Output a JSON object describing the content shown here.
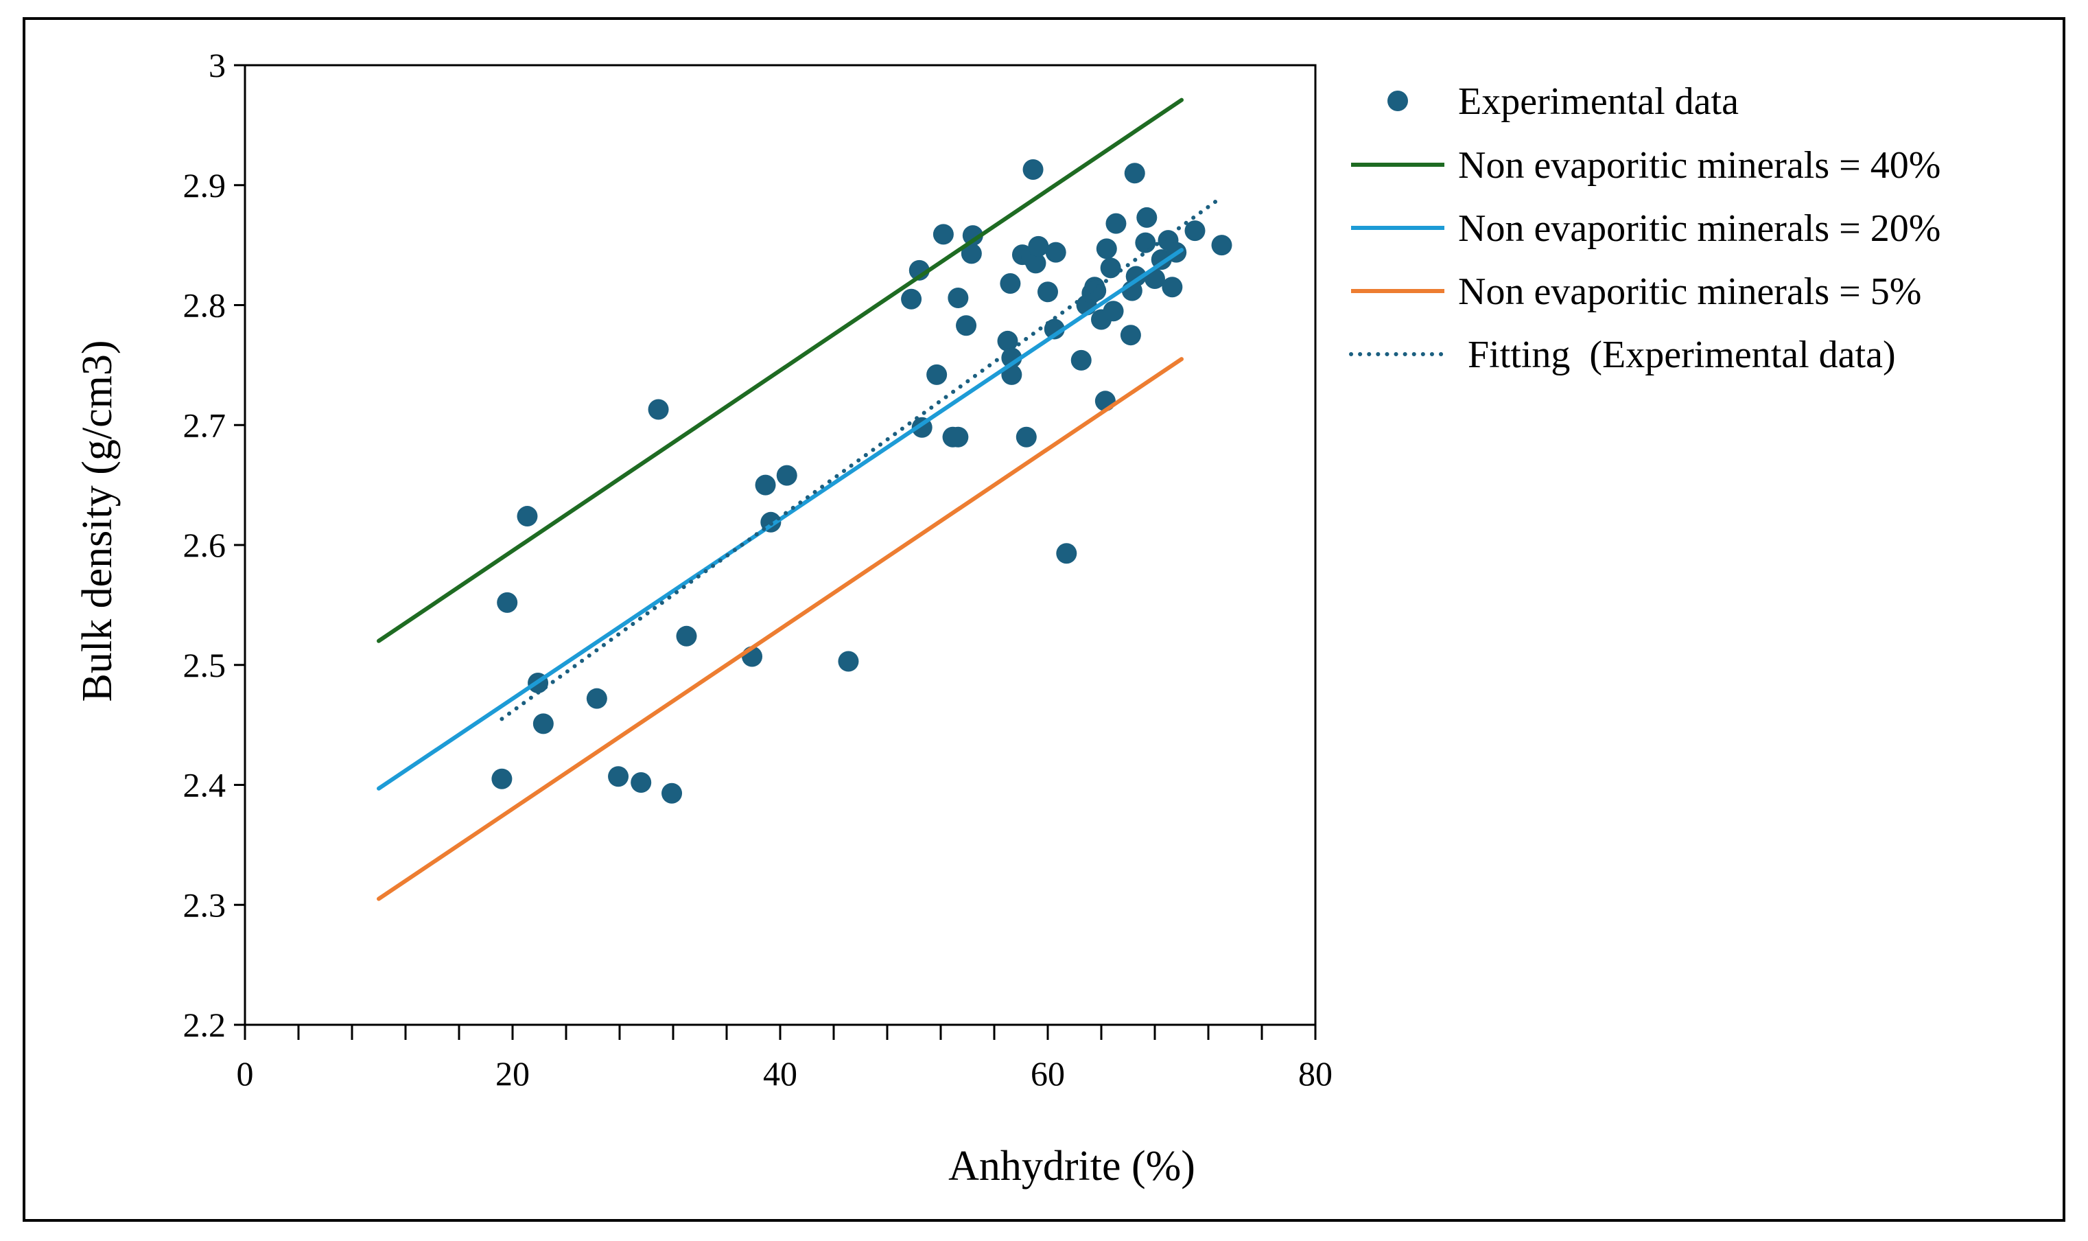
{
  "chart_data": {
    "type": "scatter",
    "title": "",
    "xlabel": "Anhydrite  (%)",
    "ylabel": "Bulk density  (g/cm3)",
    "xlim": [
      0,
      80
    ],
    "ylim": [
      2.2,
      3.0
    ],
    "x_major_ticks": [
      0,
      20,
      40,
      60,
      80
    ],
    "x_tick_labels": [
      "0",
      "20",
      "40",
      "60",
      "80"
    ],
    "x_minor_step": 4,
    "y_ticks": [
      2.2,
      2.3,
      2.4,
      2.5,
      2.6,
      2.7,
      2.8,
      2.9,
      3.0
    ],
    "y_tick_labels": [
      "2.2",
      "2.3",
      "2.4",
      "2.5",
      "2.6",
      "2.7",
      "2.8",
      "2.9",
      "3"
    ],
    "grid": false,
    "legend_position": "right",
    "series": [
      {
        "name": "Experimental data",
        "kind": "scatter",
        "color": "#1b5f80",
        "points": [
          [
            19.2,
            2.405
          ],
          [
            19.6,
            2.552
          ],
          [
            21.1,
            2.624
          ],
          [
            21.9,
            2.485
          ],
          [
            22.3,
            2.451
          ],
          [
            26.3,
            2.472
          ],
          [
            27.9,
            2.407
          ],
          [
            29.6,
            2.402
          ],
          [
            30.9,
            2.713
          ],
          [
            31.9,
            2.393
          ],
          [
            33.0,
            2.524
          ],
          [
            37.9,
            2.507
          ],
          [
            38.9,
            2.65
          ],
          [
            39.3,
            2.619
          ],
          [
            40.5,
            2.658
          ],
          [
            45.1,
            2.503
          ],
          [
            49.8,
            2.805
          ],
          [
            50.4,
            2.829
          ],
          [
            50.6,
            2.698
          ],
          [
            51.7,
            2.742
          ],
          [
            52.2,
            2.859
          ],
          [
            52.9,
            2.69
          ],
          [
            53.3,
            2.69
          ],
          [
            53.3,
            2.806
          ],
          [
            53.9,
            2.783
          ],
          [
            54.3,
            2.843
          ],
          [
            54.4,
            2.858
          ],
          [
            57.0,
            2.77
          ],
          [
            57.2,
            2.818
          ],
          [
            57.3,
            2.742
          ],
          [
            57.3,
            2.756
          ],
          [
            58.1,
            2.842
          ],
          [
            58.4,
            2.69
          ],
          [
            58.8,
            2.84
          ],
          [
            58.9,
            2.913
          ],
          [
            59.1,
            2.835
          ],
          [
            59.3,
            2.849
          ],
          [
            60.0,
            2.811
          ],
          [
            60.5,
            2.78
          ],
          [
            60.6,
            2.844
          ],
          [
            61.4,
            2.593
          ],
          [
            62.5,
            2.754
          ],
          [
            62.9,
            2.8
          ],
          [
            63.3,
            2.81
          ],
          [
            63.5,
            2.815
          ],
          [
            63.6,
            2.812
          ],
          [
            64.0,
            2.788
          ],
          [
            64.3,
            2.72
          ],
          [
            64.4,
            2.847
          ],
          [
            64.7,
            2.831
          ],
          [
            64.9,
            2.795
          ],
          [
            65.1,
            2.868
          ],
          [
            66.2,
            2.775
          ],
          [
            66.3,
            2.812
          ],
          [
            66.5,
            2.91
          ],
          [
            66.6,
            2.824
          ],
          [
            67.3,
            2.852
          ],
          [
            67.4,
            2.873
          ],
          [
            68.0,
            2.822
          ],
          [
            68.5,
            2.838
          ],
          [
            69.0,
            2.854
          ],
          [
            69.3,
            2.815
          ],
          [
            69.6,
            2.844
          ],
          [
            71.0,
            2.862
          ],
          [
            73.0,
            2.85
          ]
        ]
      },
      {
        "name": "Non evaporitic minerals = 40%",
        "kind": "line",
        "color": "#1e6b22",
        "points": [
          [
            10,
            2.52
          ],
          [
            70,
            2.971
          ]
        ]
      },
      {
        "name": "Non evaporitic minerals = 20%",
        "kind": "line",
        "color": "#1d9bd6",
        "points": [
          [
            10,
            2.397
          ],
          [
            70,
            2.846
          ]
        ]
      },
      {
        "name": "Non evaporitic minerals = 5%",
        "kind": "line",
        "color": "#ed7d31",
        "points": [
          [
            10,
            2.305
          ],
          [
            70,
            2.755
          ]
        ]
      },
      {
        "name": " Fitting  (Experimental data)",
        "kind": "dotted-line",
        "color": "#1b5f80",
        "points": [
          [
            19.2,
            2.455
          ],
          [
            73.0,
            2.89
          ]
        ]
      }
    ]
  }
}
